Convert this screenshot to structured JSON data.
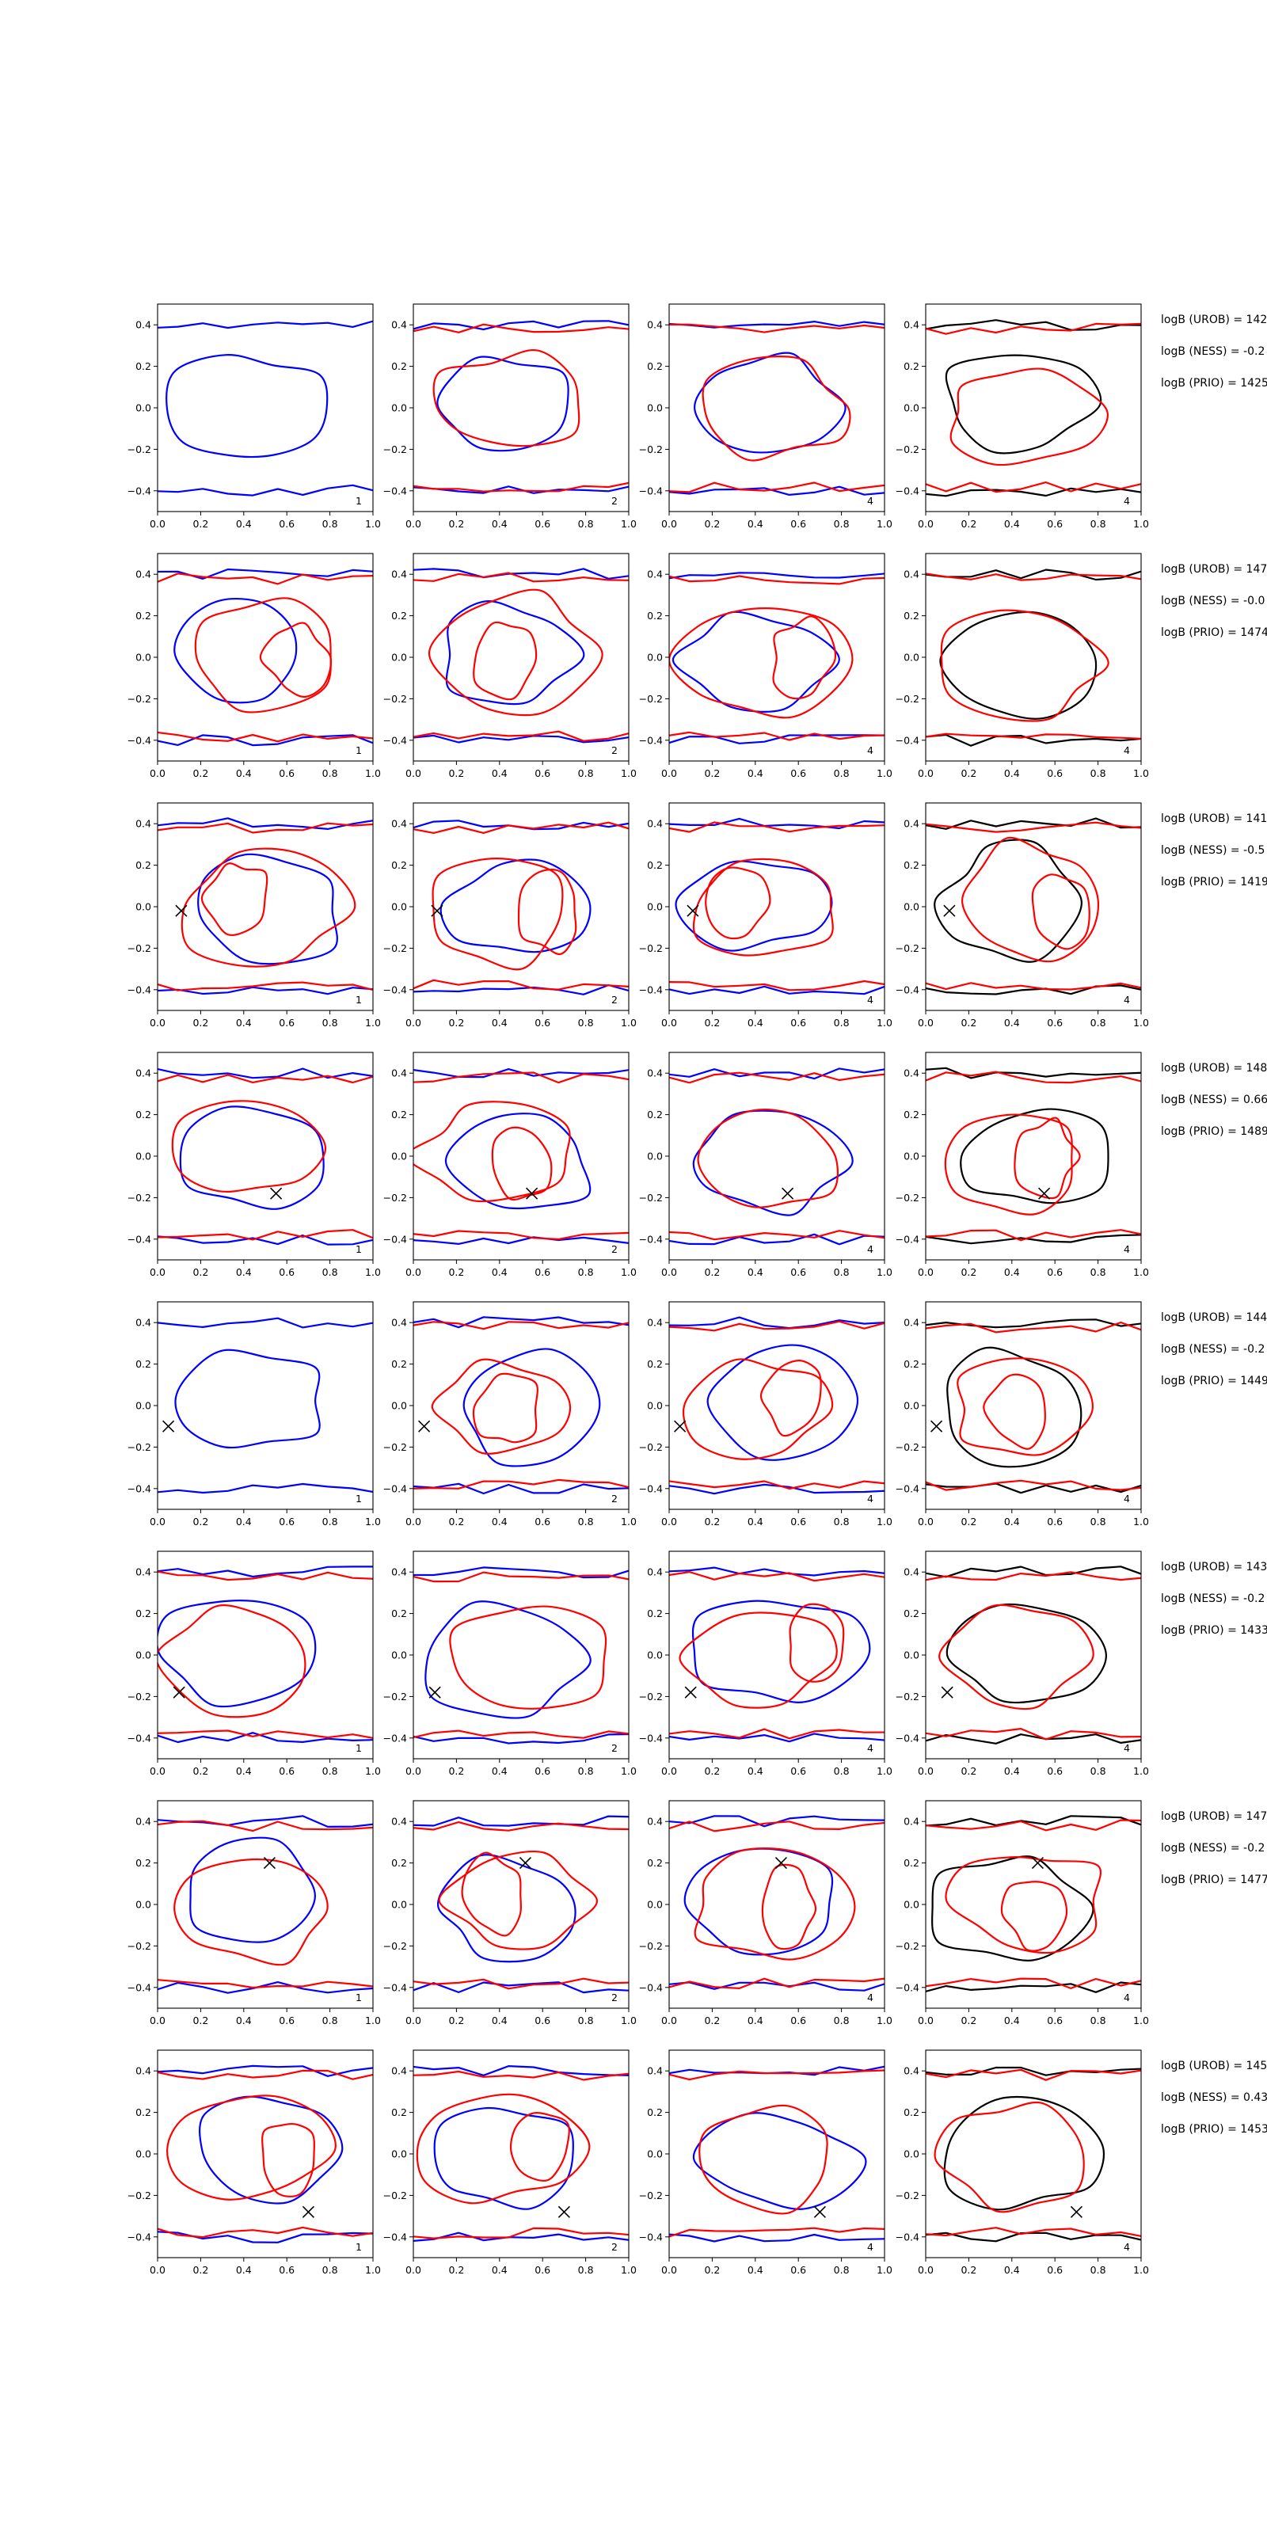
{
  "chart_data": {
    "type": "contour",
    "grid": false,
    "xlim": [
      0.0,
      1.0
    ],
    "ylim": [
      -0.5,
      0.5
    ],
    "x_tick_labels": [
      "0.0",
      "0.2",
      "0.4",
      "0.6",
      "0.8",
      "1.0"
    ],
    "y_tick_labels": [
      "0.4",
      "0.2",
      "0.0",
      "−0.2",
      "−0.4"
    ],
    "colors": {
      "blue": "#0000ff",
      "red": "#ff0000",
      "black": "#000000"
    },
    "rows": [
      {
        "marker": null,
        "panels": [
          {
            "label": "1",
            "colors": [
              "blue"
            ]
          },
          {
            "label": "2",
            "colors": [
              "blue",
              "red"
            ]
          },
          {
            "label": "4",
            "colors": [
              "blue",
              "red"
            ]
          },
          {
            "label": "4",
            "colors": [
              "black",
              "red"
            ]
          }
        ],
        "logB": [
          "logB (UROB) = 142",
          "logB (NESS) = -0.2",
          "logB (PRIO) = 1425"
        ]
      },
      {
        "marker": null,
        "panels": [
          {
            "label": "1",
            "colors": [
              "blue",
              "red"
            ]
          },
          {
            "label": "2",
            "colors": [
              "blue",
              "red"
            ]
          },
          {
            "label": "4",
            "colors": [
              "blue",
              "red"
            ]
          },
          {
            "label": "4",
            "colors": [
              "black",
              "red"
            ]
          }
        ],
        "logB": [
          "logB (UROB) = 147",
          "logB (NESS) = -0.0",
          "logB (PRIO) = 1474"
        ]
      },
      {
        "marker": [
          0.11,
          -0.02
        ],
        "panels": [
          {
            "label": "1",
            "colors": [
              "blue",
              "red"
            ]
          },
          {
            "label": "2",
            "colors": [
              "blue",
              "red"
            ]
          },
          {
            "label": "4",
            "colors": [
              "blue",
              "red"
            ]
          },
          {
            "label": "4",
            "colors": [
              "black",
              "red"
            ]
          }
        ],
        "logB": [
          "logB (UROB) = 141",
          "logB (NESS) = -0.5",
          "logB (PRIO) = 1419"
        ]
      },
      {
        "marker": [
          0.55,
          -0.18
        ],
        "panels": [
          {
            "label": "1",
            "colors": [
              "blue",
              "red"
            ]
          },
          {
            "label": "2",
            "colors": [
              "blue",
              "red"
            ]
          },
          {
            "label": "4",
            "colors": [
              "blue",
              "red"
            ]
          },
          {
            "label": "4",
            "colors": [
              "black",
              "red"
            ]
          }
        ],
        "logB": [
          "logB (UROB) = 148",
          "logB (NESS) = 0.66",
          "logB (PRIO) = 1489"
        ]
      },
      {
        "marker": [
          0.05,
          -0.1
        ],
        "panels": [
          {
            "label": "1",
            "colors": [
              "blue"
            ]
          },
          {
            "label": "2",
            "colors": [
              "blue",
              "red"
            ]
          },
          {
            "label": "4",
            "colors": [
              "blue",
              "red"
            ]
          },
          {
            "label": "4",
            "colors": [
              "black",
              "red"
            ]
          }
        ],
        "logB": [
          "logB (UROB) = 144",
          "logB (NESS) = -0.2",
          "logB (PRIO) = 1449"
        ]
      },
      {
        "marker": [
          0.1,
          -0.18
        ],
        "panels": [
          {
            "label": "1",
            "colors": [
              "blue",
              "red"
            ]
          },
          {
            "label": "2",
            "colors": [
              "blue",
              "red"
            ]
          },
          {
            "label": "4",
            "colors": [
              "blue",
              "red"
            ]
          },
          {
            "label": "4",
            "colors": [
              "black",
              "red"
            ]
          }
        ],
        "logB": [
          "logB (UROB) = 143",
          "logB (NESS) = -0.2",
          "logB (PRIO) = 1433"
        ]
      },
      {
        "marker": [
          0.52,
          0.2
        ],
        "panels": [
          {
            "label": "1",
            "colors": [
              "blue",
              "red"
            ]
          },
          {
            "label": "2",
            "colors": [
              "blue",
              "red"
            ]
          },
          {
            "label": "4",
            "colors": [
              "blue",
              "red"
            ]
          },
          {
            "label": "4",
            "colors": [
              "black",
              "red"
            ]
          }
        ],
        "logB": [
          "logB (UROB) = 147",
          "logB (NESS) = -0.2",
          "logB (PRIO) = 1477"
        ]
      },
      {
        "marker": [
          0.7,
          -0.28
        ],
        "panels": [
          {
            "label": "1",
            "colors": [
              "blue",
              "red"
            ]
          },
          {
            "label": "2",
            "colors": [
              "blue",
              "red"
            ]
          },
          {
            "label": "4",
            "colors": [
              "blue",
              "red"
            ]
          },
          {
            "label": "4",
            "colors": [
              "black",
              "red"
            ]
          }
        ],
        "logB": [
          "logB (UROB) = 145",
          "logB (NESS) = 0.43",
          "logB (PRIO) = 1453"
        ]
      }
    ]
  }
}
